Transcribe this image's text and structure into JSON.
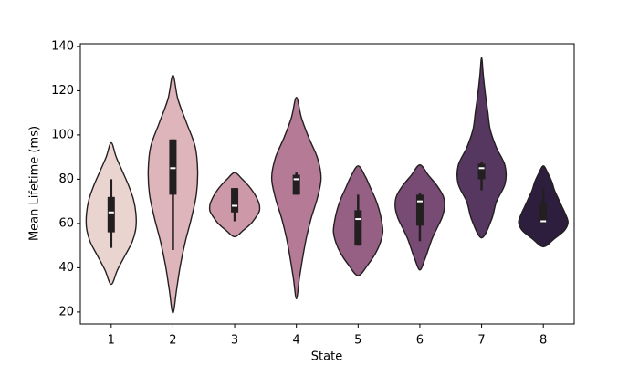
{
  "chart_data": {
    "type": "violin",
    "x_label": "State",
    "y_label": "Mean Lifetime (ms)",
    "categories": [
      "1",
      "2",
      "3",
      "4",
      "5",
      "6",
      "7",
      "8"
    ],
    "colors": [
      "#ead4d0",
      "#deb5ba",
      "#cd99a8",
      "#b57a96",
      "#956083",
      "#784b75",
      "#553760",
      "#2d1e3e"
    ],
    "ylim": [
      14.6,
      141.2
    ],
    "yticks": [
      20,
      40,
      60,
      80,
      100,
      120,
      140
    ],
    "grid": false,
    "violins": [
      {
        "min": 32.5,
        "max": 96.5,
        "q1": 56,
        "median": 65,
        "q3": 72,
        "whisker_low": 49,
        "whisker_high": 80,
        "density": [
          0,
          0.25,
          0.55,
          0.85,
          1.0,
          1.0,
          0.9,
          0.7,
          0.45,
          0.2,
          0
        ]
      },
      {
        "min": 19.5,
        "max": 127,
        "q1": 73,
        "median": 85,
        "q3": 98,
        "whisker_low": 48,
        "whisker_high": 98,
        "density": [
          0,
          0.15,
          0.3,
          0.5,
          0.75,
          0.95,
          1.0,
          0.9,
          0.55,
          0.2,
          0
        ]
      },
      {
        "min": 54,
        "max": 83,
        "q1": 65,
        "median": 68,
        "q3": 76,
        "whisker_low": 61,
        "whisker_high": 76,
        "density": [
          0,
          0.35,
          0.65,
          0.85,
          1.0,
          1.0,
          0.9,
          0.75,
          0.55,
          0.3,
          0
        ]
      },
      {
        "min": 26,
        "max": 117,
        "q1": 73,
        "median": 80,
        "q3": 82,
        "whisker_low": 73,
        "whisker_high": 83,
        "density": [
          0,
          0.12,
          0.25,
          0.4,
          0.6,
          0.85,
          1.0,
          0.85,
          0.5,
          0.2,
          0
        ]
      },
      {
        "min": 36.5,
        "max": 86,
        "q1": 50,
        "median": 62,
        "q3": 66,
        "whisker_low": 50,
        "whisker_high": 73,
        "density": [
          0,
          0.4,
          0.7,
          0.9,
          1.0,
          0.95,
          0.85,
          0.7,
          0.5,
          0.3,
          0
        ]
      },
      {
        "min": 39,
        "max": 86.5,
        "q1": 59,
        "median": 70,
        "q3": 73,
        "whisker_low": 52,
        "whisker_high": 74,
        "density": [
          0,
          0.2,
          0.35,
          0.5,
          0.7,
          0.9,
          1.0,
          0.95,
          0.7,
          0.35,
          0
        ]
      },
      {
        "min": 53.5,
        "max": 135,
        "q1": 80,
        "median": 85,
        "q3": 87,
        "whisker_low": 75,
        "whisker_high": 88,
        "density": [
          0,
          0.4,
          0.6,
          0.95,
          0.95,
          0.6,
          0.35,
          0.25,
          0.15,
          0.07,
          0
        ]
      },
      {
        "min": 49.5,
        "max": 86,
        "q1": 61,
        "median": 61,
        "q3": 69,
        "whisker_low": 60,
        "whisker_high": 76,
        "density": [
          0,
          0.45,
          0.85,
          1.0,
          0.9,
          0.75,
          0.6,
          0.45,
          0.35,
          0.2,
          0
        ]
      }
    ]
  }
}
